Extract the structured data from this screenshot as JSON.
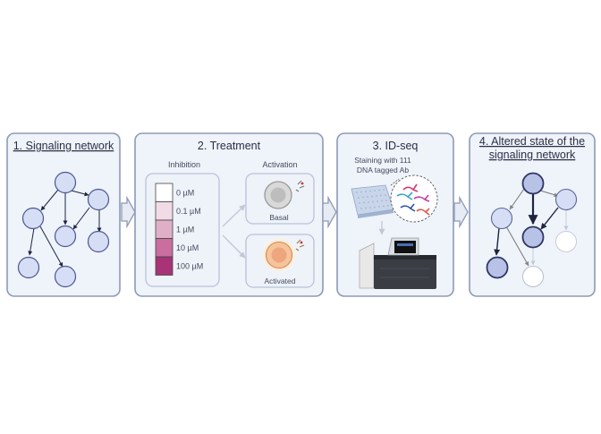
{
  "panels": {
    "p1": {
      "title": "1. Signaling network"
    },
    "p2": {
      "title": "2. Treatment",
      "inhibition_label": "Inhibition",
      "activation_label": "Activation",
      "concentrations": [
        "0 µM",
        "0.1 µM",
        "1 µM",
        "10 µM",
        "100 µM"
      ],
      "concentration_colors": [
        "#ffffff",
        "#f1dbe6",
        "#dfafc8",
        "#c96e9e",
        "#a83377"
      ],
      "basal_label": "Basal",
      "activated_label": "Activated"
    },
    "p3": {
      "title": "3. ID-seq",
      "caption_line1": "Staining with 111",
      "caption_line2": "DNA tagged Ab"
    },
    "p4": {
      "title_line1": "4. Altered state of the",
      "title_line2": "signaling network"
    }
  },
  "colors": {
    "panel_fill": "#eff3fa",
    "panel_stroke": "#8e9bb5",
    "node_fill": "#d6def5",
    "node_stroke": "#4a5590",
    "node_dark_fill": "#b8c2e6",
    "node_dark_stroke": "#2e3665"
  }
}
